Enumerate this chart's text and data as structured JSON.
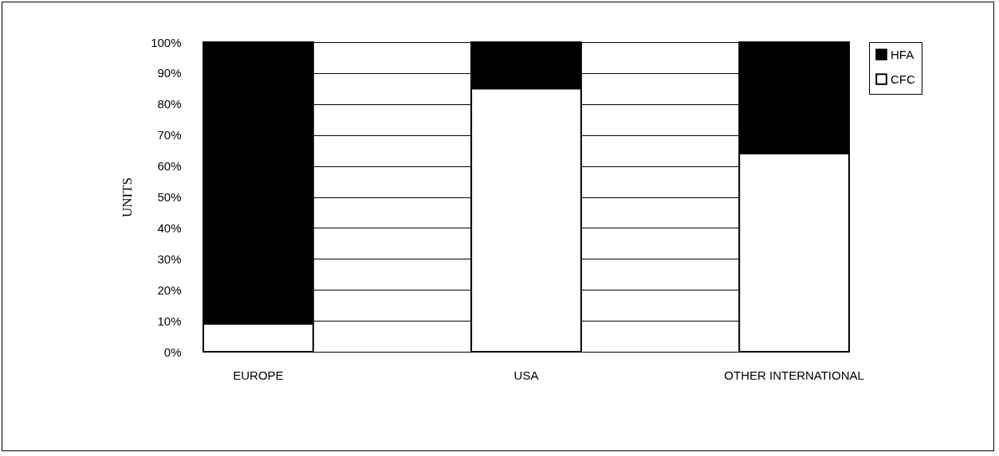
{
  "chart_data": {
    "type": "bar",
    "stacked": true,
    "ylabel": "UNITS",
    "categories": [
      "EUROPE",
      "USA",
      "OTHER INTERNATIONAL"
    ],
    "series": [
      {
        "name": "CFC",
        "color": "#ffffff",
        "values": [
          9,
          85,
          64
        ]
      },
      {
        "name": "HFA",
        "color": "#000000",
        "values": [
          91,
          15,
          36
        ]
      }
    ],
    "ylim": [
      0,
      100
    ],
    "yticks": [
      {
        "value": 0,
        "label": "0%"
      },
      {
        "value": 10,
        "label": "10%"
      },
      {
        "value": 20,
        "label": "20%"
      },
      {
        "value": 30,
        "label": "30%"
      },
      {
        "value": 40,
        "label": "40%"
      },
      {
        "value": 50,
        "label": "50%"
      },
      {
        "value": 60,
        "label": "60%"
      },
      {
        "value": 70,
        "label": "70%"
      },
      {
        "value": 80,
        "label": "80%"
      },
      {
        "value": 90,
        "label": "90%"
      },
      {
        "value": 100,
        "label": "100%"
      }
    ],
    "grid": "y",
    "legend": "right"
  }
}
